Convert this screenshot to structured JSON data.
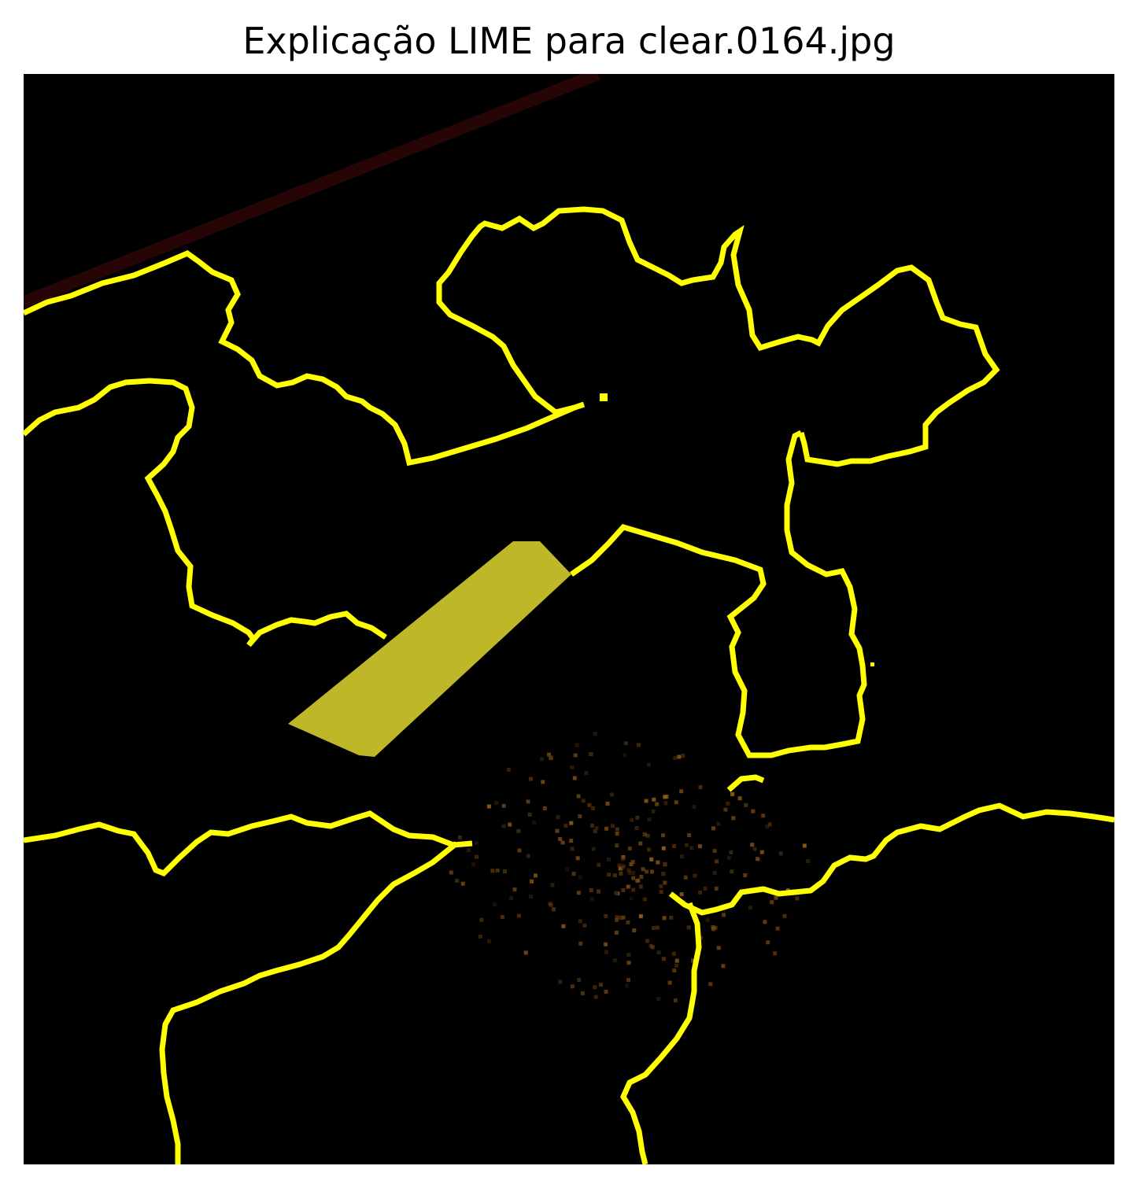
{
  "title": "Explicação LIME para clear.0164.jpg",
  "colors": {
    "background": "#ffffff",
    "image_background": "#000000",
    "boundary": "#ffff00",
    "highlight": "#c8c22a",
    "stripe": "#2a0606",
    "speckle": "#7a4a12"
  }
}
